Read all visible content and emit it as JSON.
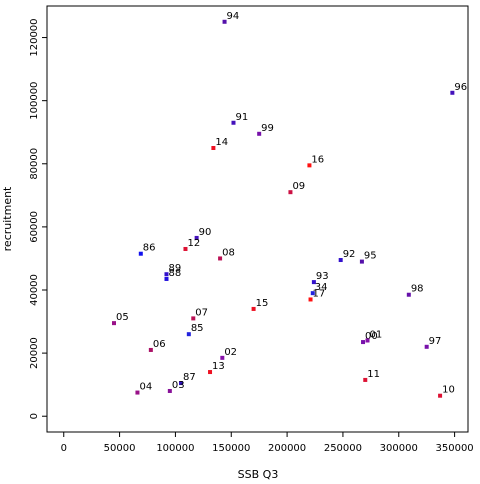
{
  "chart_data": {
    "type": "scatter",
    "title": "",
    "xlabel": "SSB Q3",
    "ylabel": "recruitment",
    "xlim": [
      -15000,
      362000
    ],
    "ylim": [
      -5000,
      130000
    ],
    "x_ticks": [
      0,
      50000,
      100000,
      150000,
      200000,
      250000,
      300000,
      350000
    ],
    "x_tick_labels": [
      "0",
      "50000",
      "100000",
      "150000",
      "200000",
      "250000",
      "300000",
      "350000"
    ],
    "y_ticks": [
      0,
      20000,
      40000,
      60000,
      80000,
      100000,
      120000
    ],
    "y_tick_labels": [
      "0",
      "20000",
      "40000",
      "60000",
      "80000",
      "100000",
      "120000"
    ],
    "grid": false,
    "points": [
      {
        "label": "85",
        "x": 112000,
        "y": 26000,
        "color": "#2222dd"
      },
      {
        "label": "86",
        "x": 69000,
        "y": 51500,
        "color": "#1111ee"
      },
      {
        "label": "87",
        "x": 105000,
        "y": 10500,
        "color": "#3311cc"
      },
      {
        "label": "88",
        "x": 92000,
        "y": 43500,
        "color": "#2211dd"
      },
      {
        "label": "89",
        "x": 92000,
        "y": 45000,
        "color": "#3311cc"
      },
      {
        "label": "90",
        "x": 119000,
        "y": 56500,
        "color": "#4411bb"
      },
      {
        "label": "91",
        "x": 152000,
        "y": 93000,
        "color": "#4411bb"
      },
      {
        "label": "92",
        "x": 248000,
        "y": 49500,
        "color": "#3311cc"
      },
      {
        "label": "93",
        "x": 224000,
        "y": 42500,
        "color": "#3311cc"
      },
      {
        "label": "94",
        "x": 144000,
        "y": 125000,
        "color": "#5511aa"
      },
      {
        "label": "95",
        "x": 267000,
        "y": 49000,
        "color": "#5511aa"
      },
      {
        "label": "96",
        "x": 348000,
        "y": 102500,
        "color": "#4411bb"
      },
      {
        "label": "97",
        "x": 325000,
        "y": 22000,
        "color": "#7711aa"
      },
      {
        "label": "98",
        "x": 309000,
        "y": 38500,
        "color": "#6611aa"
      },
      {
        "label": "99",
        "x": 175000,
        "y": 89500,
        "color": "#7711aa"
      },
      {
        "label": "00",
        "x": 268000,
        "y": 23500,
        "color": "#7711aa"
      },
      {
        "label": "01",
        "x": 272000,
        "y": 24000,
        "color": "#8811aa"
      },
      {
        "label": "02",
        "x": 142000,
        "y": 18500,
        "color": "#8811aa"
      },
      {
        "label": "03",
        "x": 95000,
        "y": 8000,
        "color": "#881199"
      },
      {
        "label": "04",
        "x": 66000,
        "y": 7500,
        "color": "#991188"
      },
      {
        "label": "05",
        "x": 45000,
        "y": 29500,
        "color": "#991188"
      },
      {
        "label": "06",
        "x": 78000,
        "y": 21000,
        "color": "#aa1166"
      },
      {
        "label": "07",
        "x": 116000,
        "y": 31000,
        "color": "#bb1155"
      },
      {
        "label": "08",
        "x": 140000,
        "y": 50000,
        "color": "#bb1155"
      },
      {
        "label": "09",
        "x": 203000,
        "y": 71000,
        "color": "#cc1144"
      },
      {
        "label": "10",
        "x": 337000,
        "y": 6500,
        "color": "#dd1133"
      },
      {
        "label": "11",
        "x": 270000,
        "y": 11500,
        "color": "#dd1133"
      },
      {
        "label": "12",
        "x": 109000,
        "y": 53000,
        "color": "#dd1133"
      },
      {
        "label": "13",
        "x": 131000,
        "y": 14000,
        "color": "#ee1122"
      },
      {
        "label": "14",
        "x": 134000,
        "y": 85000,
        "color": "#ee1122"
      },
      {
        "label": "15",
        "x": 170000,
        "y": 34000,
        "color": "#ee1122"
      },
      {
        "label": "16",
        "x": 220000,
        "y": 79500,
        "color": "#ff1111"
      },
      {
        "label": "17",
        "x": 221000,
        "y": 37000,
        "color": "#ff1111"
      },
      {
        "label": "34",
        "x": 223000,
        "y": 39000,
        "color": "#2222dd"
      }
    ]
  }
}
